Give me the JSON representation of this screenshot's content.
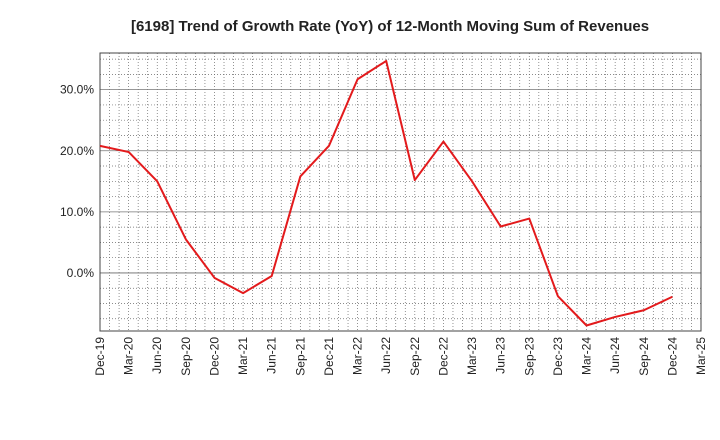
{
  "chart_data": {
    "type": "line",
    "title": "[6198]  Trend of Growth Rate (YoY) of 12-Month Moving Sum of Revenues",
    "xlabel": "",
    "ylabel": "",
    "x_tick_labels": [
      "Dec-19",
      "Mar-20",
      "Jun-20",
      "Sep-20",
      "Dec-20",
      "Mar-21",
      "Jun-21",
      "Sep-21",
      "Dec-21",
      "Mar-22",
      "Jun-22",
      "Sep-22",
      "Dec-22",
      "Mar-23",
      "Jun-23",
      "Sep-23",
      "Dec-23",
      "Mar-24",
      "Jun-24",
      "Sep-24",
      "Dec-24",
      "Mar-25"
    ],
    "y_ticks": [
      0,
      10,
      20,
      30
    ],
    "y_tick_labels": [
      "0.0%",
      "10.0%",
      "20.0%",
      "30.0%"
    ],
    "ylim": [
      -9.5,
      36
    ],
    "grid": true,
    "series": [
      {
        "color": "#e31a1c",
        "values": [
          20.8,
          19.8,
          15.0,
          5.5,
          -0.8,
          -3.3,
          -0.5,
          15.8,
          20.8,
          31.7,
          34.7,
          15.2,
          21.5,
          15.0,
          7.6,
          8.9,
          -3.8,
          -8.6,
          -7.2,
          -6.1,
          -3.9
        ]
      }
    ]
  }
}
